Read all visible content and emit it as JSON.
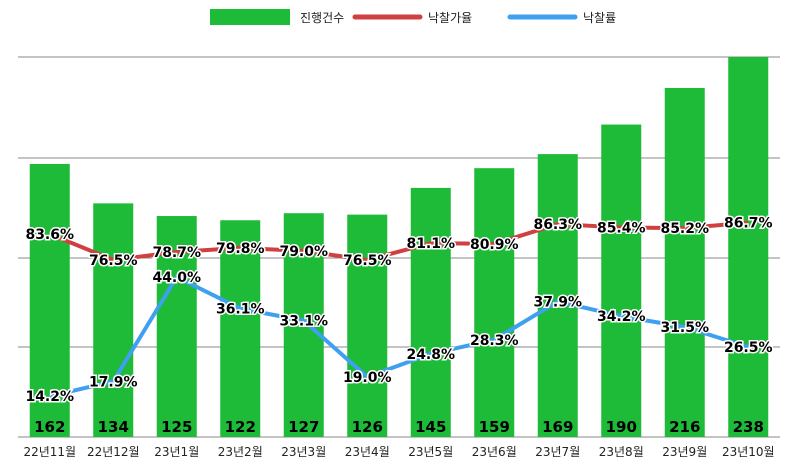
{
  "chart_data": {
    "type": "bar",
    "title": "",
    "xlabel": "",
    "ylabel": "",
    "categories": [
      "22년11월",
      "22년12월",
      "23년1월",
      "23년2월",
      "23년3월",
      "23년4월",
      "23년5월",
      "23년6월",
      "23년7월",
      "23년8월",
      "23년9월",
      "23년10월"
    ],
    "legend_position": "top-center",
    "grid": true,
    "series": [
      {
        "name": "진행건수",
        "type": "bar",
        "color": "#1dbb37",
        "values": [
          162,
          134,
          125,
          122,
          127,
          126,
          145,
          159,
          169,
          190,
          216,
          238
        ]
      },
      {
        "name": "낙찰가율",
        "type": "line",
        "color": "#d04040",
        "unit": "%",
        "values": [
          83.6,
          76.5,
          78.7,
          79.8,
          79.0,
          76.5,
          81.1,
          80.9,
          86.3,
          85.4,
          85.2,
          86.7
        ]
      },
      {
        "name": "낙찰률",
        "type": "line",
        "color": "#3fa0f0",
        "unit": "%",
        "values": [
          14.2,
          17.9,
          44.0,
          36.1,
          33.1,
          19.0,
          24.8,
          28.3,
          37.9,
          34.2,
          31.5,
          26.5
        ]
      }
    ]
  }
}
